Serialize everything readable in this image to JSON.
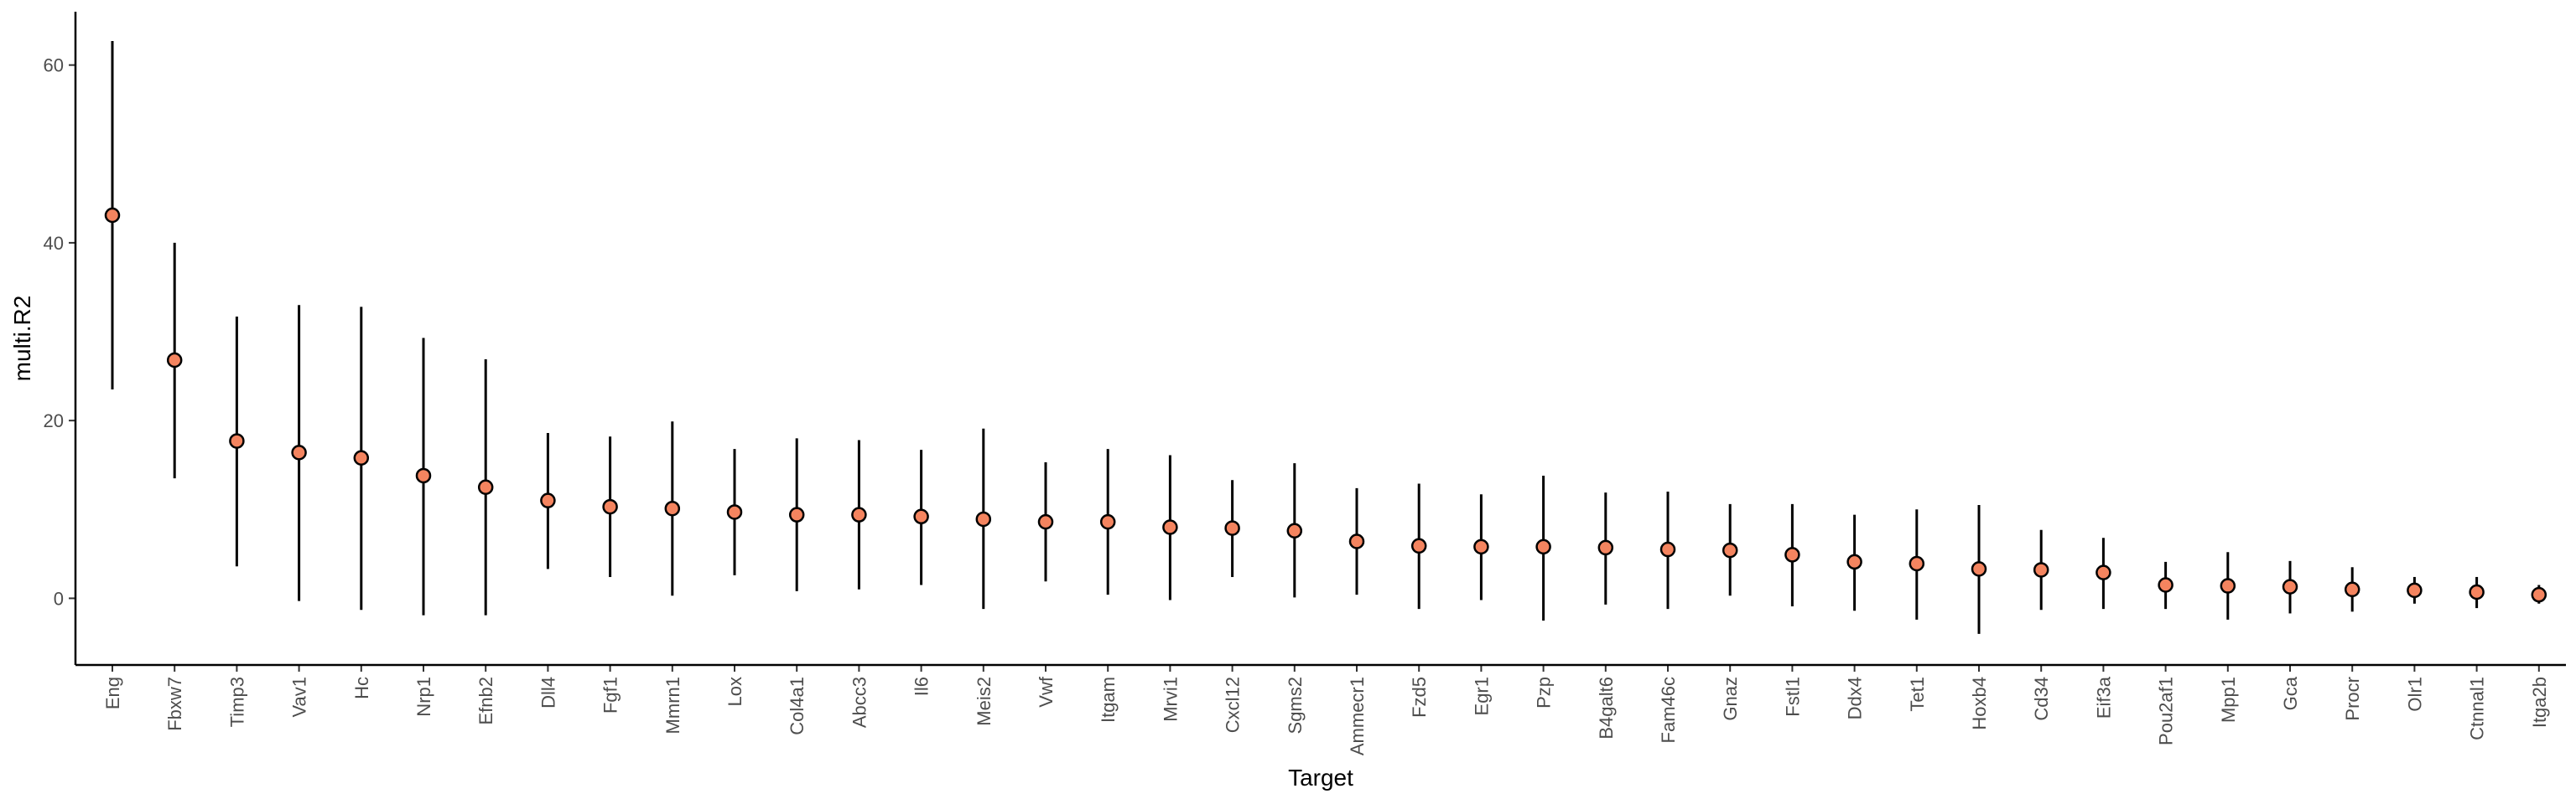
{
  "chart_data": {
    "type": "scatter",
    "xlabel": "Target",
    "ylabel": "multi.R2",
    "ylim": [
      -7.5,
      66
    ],
    "yticks": [
      0,
      20,
      40,
      60
    ],
    "grid": false,
    "point_color": "#F4845F",
    "categories": [
      "Eng",
      "Fbxw7",
      "Timp3",
      "Vav1",
      "Hc",
      "Nrp1",
      "Efnb2",
      "Dll4",
      "Fgf1",
      "Mmrn1",
      "Lox",
      "Col4a1",
      "Abcc3",
      "Il6",
      "Meis2",
      "Vwf",
      "Itgam",
      "Mrvi1",
      "Cxcl12",
      "Sgms2",
      "Ammecr1",
      "Fzd5",
      "Egr1",
      "Pzp",
      "B4galt6",
      "Fam46c",
      "Gnaz",
      "Fstl1",
      "Ddx4",
      "Tet1",
      "Hoxb4",
      "Cd34",
      "Eif3a",
      "Pou2af1",
      "Mpp1",
      "Gca",
      "Procr",
      "Olr1",
      "Ctnnal1",
      "Itga2b"
    ],
    "values": [
      43.1,
      26.8,
      17.7,
      16.4,
      15.8,
      13.8,
      12.5,
      11.0,
      10.3,
      10.1,
      9.7,
      9.4,
      9.4,
      9.2,
      8.9,
      8.6,
      8.6,
      8.0,
      7.9,
      7.6,
      6.4,
      5.9,
      5.8,
      5.8,
      5.7,
      5.5,
      5.4,
      4.9,
      4.1,
      3.9,
      3.3,
      3.2,
      2.9,
      1.5,
      1.4,
      1.3,
      1.0,
      0.9,
      0.7,
      0.4
    ],
    "lower": [
      23.5,
      13.5,
      3.6,
      -0.3,
      -1.3,
      -1.9,
      -1.9,
      3.3,
      2.4,
      0.3,
      2.6,
      0.8,
      1.0,
      1.5,
      -1.2,
      1.9,
      0.4,
      -0.2,
      2.4,
      0.1,
      0.4,
      -1.2,
      -0.2,
      -2.5,
      -0.7,
      -1.2,
      0.3,
      -0.9,
      -1.4,
      -2.4,
      -4.0,
      -1.3,
      -1.2,
      -1.2,
      -2.4,
      -1.7,
      -1.5,
      -0.6,
      -1.1,
      -0.6
    ],
    "upper": [
      62.7,
      40.0,
      31.7,
      33.0,
      32.8,
      29.3,
      26.9,
      18.6,
      18.2,
      19.9,
      16.8,
      18.0,
      17.8,
      16.7,
      19.1,
      15.3,
      16.8,
      16.1,
      13.3,
      15.2,
      12.4,
      12.9,
      11.7,
      13.8,
      11.9,
      12.0,
      10.6,
      10.6,
      9.4,
      10.0,
      10.5,
      7.7,
      6.8,
      4.1,
      5.2,
      4.2,
      3.5,
      2.4,
      2.4,
      1.5
    ]
  }
}
